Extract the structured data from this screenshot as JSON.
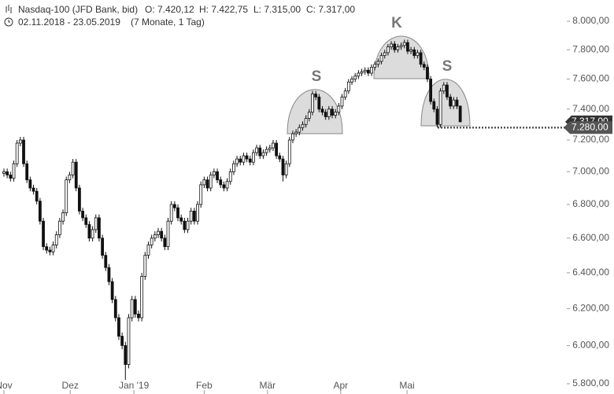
{
  "header": {
    "symbol": "Nasdaq-100 (JFD Bank, bid)",
    "open": "O: 7.420,12",
    "high": "H: 7.422,75",
    "low": "L: 7.315,00",
    "close": "C: 7.317,00",
    "range": "02.11.2018 - 23.05.2019",
    "span": "(7 Monate, 1 Tag)"
  },
  "chart_data": {
    "type": "candlestick",
    "log_scale": true,
    "up_color": "#ffffff",
    "down_color": "#111111",
    "candles": [
      [
        6990,
        7020,
        6970,
        7000
      ],
      [
        7000,
        7020,
        6960,
        6980
      ],
      [
        6980,
        7000,
        6940,
        6960
      ],
      [
        6960,
        7070,
        6940,
        7050
      ],
      [
        7050,
        7200,
        7030,
        7180
      ],
      [
        7180,
        7220,
        7160,
        7200
      ],
      [
        7200,
        7220,
        7030,
        7050
      ],
      [
        7050,
        7070,
        6930,
        6950
      ],
      [
        6950,
        6970,
        6880,
        6900
      ],
      [
        6900,
        6920,
        6860,
        6880
      ],
      [
        6880,
        6900,
        6800,
        6820
      ],
      [
        6820,
        6840,
        6680,
        6700
      ],
      [
        6700,
        6720,
        6530,
        6550
      ],
      [
        6550,
        6570,
        6510,
        6530
      ],
      [
        6530,
        6550,
        6500,
        6520
      ],
      [
        6520,
        6580,
        6500,
        6560
      ],
      [
        6560,
        6640,
        6540,
        6620
      ],
      [
        6620,
        6720,
        6600,
        6700
      ],
      [
        6700,
        6770,
        6680,
        6750
      ],
      [
        6750,
        6970,
        6730,
        6950
      ],
      [
        6950,
        7000,
        6930,
        6980
      ],
      [
        6980,
        7080,
        6960,
        7060
      ],
      [
        7060,
        7080,
        6880,
        6900
      ],
      [
        6900,
        6920,
        6740,
        6760
      ],
      [
        6760,
        6780,
        6700,
        6720
      ],
      [
        6720,
        6740,
        6660,
        6680
      ],
      [
        6680,
        6700,
        6580,
        6600
      ],
      [
        6600,
        6670,
        6580,
        6650
      ],
      [
        6650,
        6740,
        6630,
        6720
      ],
      [
        6720,
        6740,
        6580,
        6600
      ],
      [
        6600,
        6620,
        6480,
        6500
      ],
      [
        6500,
        6520,
        6410,
        6430
      ],
      [
        6430,
        6450,
        6330,
        6350
      ],
      [
        6350,
        6370,
        6230,
        6250
      ],
      [
        6250,
        6270,
        6130,
        6150
      ],
      [
        6150,
        6170,
        6030,
        6050
      ],
      [
        6050,
        6070,
        5980,
        6000
      ],
      [
        6000,
        6020,
        5820,
        5900
      ],
      [
        5900,
        6170,
        5880,
        6150
      ],
      [
        6150,
        6270,
        6130,
        6250
      ],
      [
        6250,
        6270,
        6150,
        6170
      ],
      [
        6170,
        6190,
        6130,
        6150
      ],
      [
        6150,
        6400,
        6130,
        6380
      ],
      [
        6380,
        6520,
        6360,
        6500
      ],
      [
        6500,
        6580,
        6480,
        6560
      ],
      [
        6560,
        6620,
        6540,
        6600
      ],
      [
        6600,
        6640,
        6580,
        6620
      ],
      [
        6620,
        6660,
        6600,
        6640
      ],
      [
        6640,
        6660,
        6580,
        6600
      ],
      [
        6600,
        6620,
        6530,
        6550
      ],
      [
        6550,
        6720,
        6530,
        6700
      ],
      [
        6700,
        6820,
        6680,
        6800
      ],
      [
        6800,
        6820,
        6760,
        6780
      ],
      [
        6780,
        6800,
        6700,
        6720
      ],
      [
        6720,
        6740,
        6680,
        6700
      ],
      [
        6700,
        6720,
        6630,
        6650
      ],
      [
        6650,
        6720,
        6630,
        6700
      ],
      [
        6700,
        6780,
        6680,
        6760
      ],
      [
        6760,
        6780,
        6680,
        6700
      ],
      [
        6700,
        6820,
        6680,
        6800
      ],
      [
        6800,
        6940,
        6780,
        6920
      ],
      [
        6920,
        6970,
        6900,
        6950
      ],
      [
        6950,
        6970,
        6880,
        6900
      ],
      [
        6900,
        7000,
        6880,
        6980
      ],
      [
        6980,
        7020,
        6960,
        7000
      ],
      [
        7000,
        7020,
        6930,
        6950
      ],
      [
        6950,
        6970,
        6900,
        6920
      ],
      [
        6920,
        6940,
        6880,
        6900
      ],
      [
        6900,
        6960,
        6880,
        6940
      ],
      [
        6940,
        7020,
        6920,
        7000
      ],
      [
        7000,
        7070,
        6980,
        7050
      ],
      [
        7050,
        7100,
        7030,
        7080
      ],
      [
        7080,
        7100,
        7040,
        7060
      ],
      [
        7060,
        7120,
        7040,
        7100
      ],
      [
        7100,
        7120,
        7060,
        7080
      ],
      [
        7080,
        7100,
        7040,
        7060
      ],
      [
        7060,
        7140,
        7040,
        7120
      ],
      [
        7120,
        7170,
        7100,
        7150
      ],
      [
        7150,
        7170,
        7080,
        7100
      ],
      [
        7100,
        7140,
        7080,
        7120
      ],
      [
        7120,
        7160,
        7100,
        7140
      ],
      [
        7140,
        7170,
        7120,
        7150
      ],
      [
        7150,
        7200,
        7130,
        7180
      ],
      [
        7180,
        7200,
        7080,
        7100
      ],
      [
        7100,
        7120,
        7060,
        7080
      ],
      [
        7080,
        7100,
        6940,
        6980
      ],
      [
        6980,
        7070,
        6960,
        7050
      ],
      [
        7050,
        7220,
        7030,
        7200
      ],
      [
        7200,
        7260,
        7180,
        7240
      ],
      [
        7240,
        7270,
        7220,
        7250
      ],
      [
        7250,
        7300,
        7230,
        7280
      ],
      [
        7280,
        7320,
        7260,
        7300
      ],
      [
        7300,
        7360,
        7280,
        7340
      ],
      [
        7340,
        7400,
        7320,
        7380
      ],
      [
        7380,
        7520,
        7360,
        7500
      ],
      [
        7500,
        7520,
        7460,
        7480
      ],
      [
        7480,
        7500,
        7380,
        7400
      ],
      [
        7400,
        7420,
        7360,
        7380
      ],
      [
        7380,
        7400,
        7330,
        7350
      ],
      [
        7350,
        7420,
        7330,
        7400
      ],
      [
        7400,
        7420,
        7340,
        7360
      ],
      [
        7360,
        7400,
        7340,
        7380
      ],
      [
        7380,
        7440,
        7360,
        7420
      ],
      [
        7420,
        7500,
        7400,
        7480
      ],
      [
        7480,
        7540,
        7460,
        7520
      ],
      [
        7520,
        7600,
        7500,
        7580
      ],
      [
        7580,
        7620,
        7560,
        7600
      ],
      [
        7600,
        7640,
        7580,
        7620
      ],
      [
        7620,
        7660,
        7600,
        7640
      ],
      [
        7640,
        7670,
        7620,
        7650
      ],
      [
        7650,
        7680,
        7630,
        7660
      ],
      [
        7660,
        7680,
        7620,
        7640
      ],
      [
        7640,
        7700,
        7620,
        7680
      ],
      [
        7680,
        7720,
        7660,
        7700
      ],
      [
        7700,
        7740,
        7680,
        7720
      ],
      [
        7720,
        7780,
        7700,
        7760
      ],
      [
        7760,
        7800,
        7740,
        7780
      ],
      [
        7780,
        7840,
        7760,
        7820
      ],
      [
        7820,
        7860,
        7800,
        7840
      ],
      [
        7840,
        7860,
        7780,
        7800
      ],
      [
        7800,
        7840,
        7780,
        7820
      ],
      [
        7820,
        7850,
        7800,
        7830
      ],
      [
        7830,
        7870,
        7810,
        7850
      ],
      [
        7850,
        7870,
        7770,
        7790
      ],
      [
        7790,
        7820,
        7770,
        7800
      ],
      [
        7800,
        7820,
        7740,
        7760
      ],
      [
        7760,
        7800,
        7740,
        7780
      ],
      [
        7780,
        7800,
        7680,
        7700
      ],
      [
        7700,
        7720,
        7660,
        7680
      ],
      [
        7680,
        7700,
        7580,
        7600
      ],
      [
        7600,
        7620,
        7430,
        7450
      ],
      [
        7450,
        7470,
        7380,
        7400
      ],
      [
        7400,
        7420,
        7280,
        7300
      ],
      [
        7300,
        7540,
        7280,
        7520
      ],
      [
        7520,
        7580,
        7500,
        7560
      ],
      [
        7560,
        7580,
        7460,
        7480
      ],
      [
        7480,
        7500,
        7400,
        7420
      ],
      [
        7420,
        7480,
        7400,
        7460
      ],
      [
        7460,
        7480,
        7400,
        7420
      ],
      [
        7420.12,
        7422.75,
        7315,
        7317
      ]
    ],
    "ylim": [
      5800,
      8000
    ],
    "yticks": [
      {
        "value": 5800,
        "label": "5.800,00"
      },
      {
        "value": 6000,
        "label": "6.000,00"
      },
      {
        "value": 6200,
        "label": "6.200,00"
      },
      {
        "value": 6400,
        "label": "6.400,00"
      },
      {
        "value": 6600,
        "label": "6.600,00"
      },
      {
        "value": 6800,
        "label": "6.800,00"
      },
      {
        "value": 7000,
        "label": "7.000,00"
      },
      {
        "value": 7200,
        "label": "7.200,00"
      },
      {
        "value": 7400,
        "label": "7.400,00"
      },
      {
        "value": 7600,
        "label": "7.600,00"
      },
      {
        "value": 7800,
        "label": "7.800,00"
      },
      {
        "value": 8000,
        "label": "8.000,00"
      }
    ],
    "xticks": [
      {
        "value": 0,
        "label": "Nov"
      },
      {
        "value": 20.2,
        "label": "Dez"
      },
      {
        "value": 39.6,
        "label": "Jan '19"
      },
      {
        "value": 61,
        "label": "Feb"
      },
      {
        "value": 80.3,
        "label": "Mär"
      },
      {
        "value": 102.6,
        "label": "Apr"
      },
      {
        "value": 122.8,
        "label": "Mai"
      }
    ],
    "last_price": {
      "value": 7317,
      "label": "7.317,00"
    },
    "reference_line": {
      "value": 7280,
      "label": "7.280,00"
    },
    "annotations": [
      "S",
      "K",
      "S"
    ]
  }
}
